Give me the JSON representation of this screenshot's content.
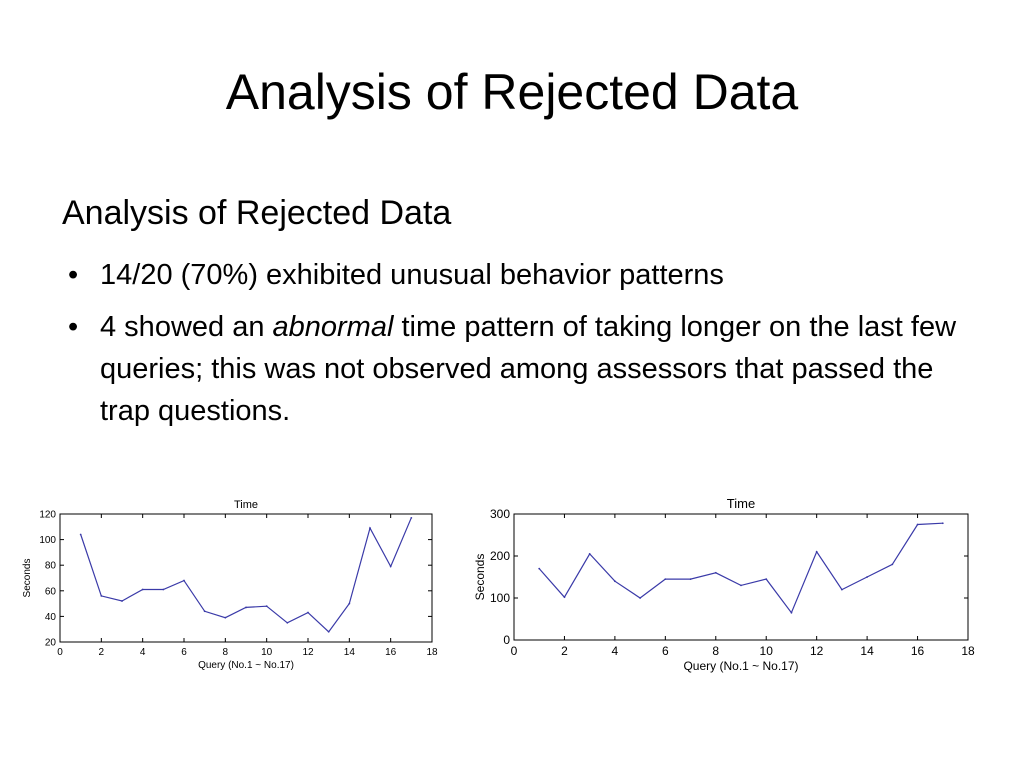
{
  "slide": {
    "title": "Analysis of Rejected Data",
    "subheading": "Analysis of Rejected Data",
    "bullets": [
      {
        "text": "14/20  (70%) exhibited unusual behavior patterns"
      },
      {
        "before": "4 showed an ",
        "emphasis": "abnormal",
        "after": " time pattern of taking longer on the last few queries; this was not observed among assessors that passed the trap questions."
      }
    ],
    "bullet_glyph": "•"
  },
  "colors": {
    "line": "#3a3aa8",
    "axis": "#000000"
  },
  "chart_data": [
    {
      "type": "line",
      "title": "Time",
      "xlabel": "Query (No.1 ~ No.17)",
      "ylabel": "Seconds",
      "xlim": [
        0,
        18
      ],
      "ylim": [
        20,
        120
      ],
      "xticks": [
        0,
        2,
        4,
        6,
        8,
        10,
        12,
        14,
        16,
        18
      ],
      "yticks": [
        20,
        40,
        60,
        80,
        100,
        120
      ],
      "grid": false,
      "series": [
        {
          "x": [
            1,
            2,
            3,
            4,
            5,
            6,
            7,
            8,
            9,
            10,
            11,
            12,
            13,
            14,
            15,
            16,
            17
          ],
          "y": [
            104,
            56,
            52,
            61,
            61,
            68,
            44,
            39,
            47,
            48,
            35,
            43,
            28,
            50,
            109,
            79,
            117
          ]
        }
      ]
    },
    {
      "type": "line",
      "title": "Time",
      "xlabel": "Query (No.1 ~ No.17)",
      "ylabel": "Seconds",
      "xlim": [
        0,
        18
      ],
      "ylim": [
        0,
        300
      ],
      "xticks": [
        0,
        2,
        4,
        6,
        8,
        10,
        12,
        14,
        16,
        18
      ],
      "yticks": [
        0,
        100,
        200,
        300
      ],
      "grid": false,
      "series": [
        {
          "x": [
            1,
            2,
            3,
            4,
            5,
            6,
            7,
            8,
            9,
            10,
            11,
            12,
            13,
            14,
            15,
            16,
            17
          ],
          "y": [
            170,
            102,
            205,
            140,
            100,
            145,
            145,
            160,
            130,
            145,
            65,
            210,
            120,
            150,
            180,
            275,
            278
          ]
        }
      ]
    }
  ]
}
